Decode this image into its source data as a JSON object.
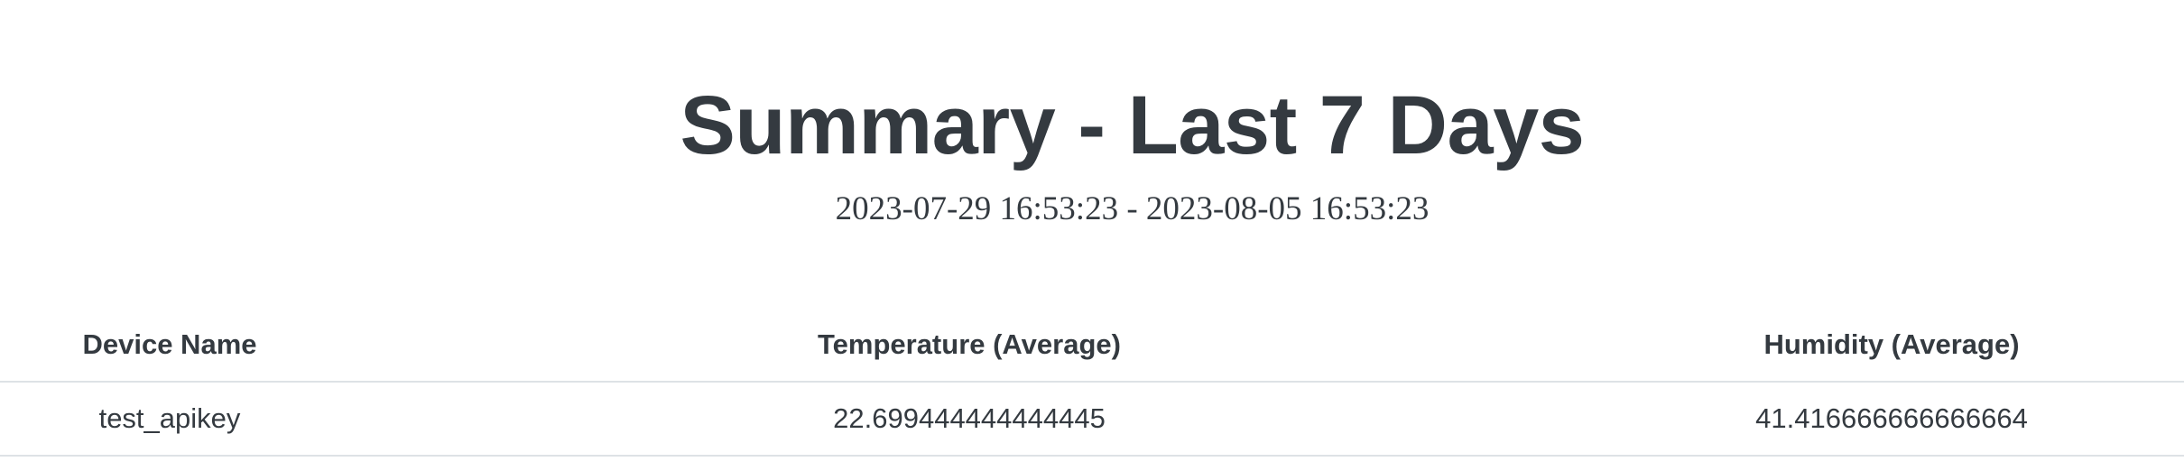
{
  "header": {
    "title": "Summary - Last 7 Days",
    "date_range": "2023-07-29 16:53:23 - 2023-08-05 16:53:23"
  },
  "table": {
    "columns": [
      "Device Name",
      "Temperature (Average)",
      "Humidity (Average)"
    ],
    "rows": [
      {
        "device_name": "test_apikey",
        "temperature_avg": "22.699444444444445",
        "humidity_avg": "41.416666666666664"
      }
    ]
  }
}
